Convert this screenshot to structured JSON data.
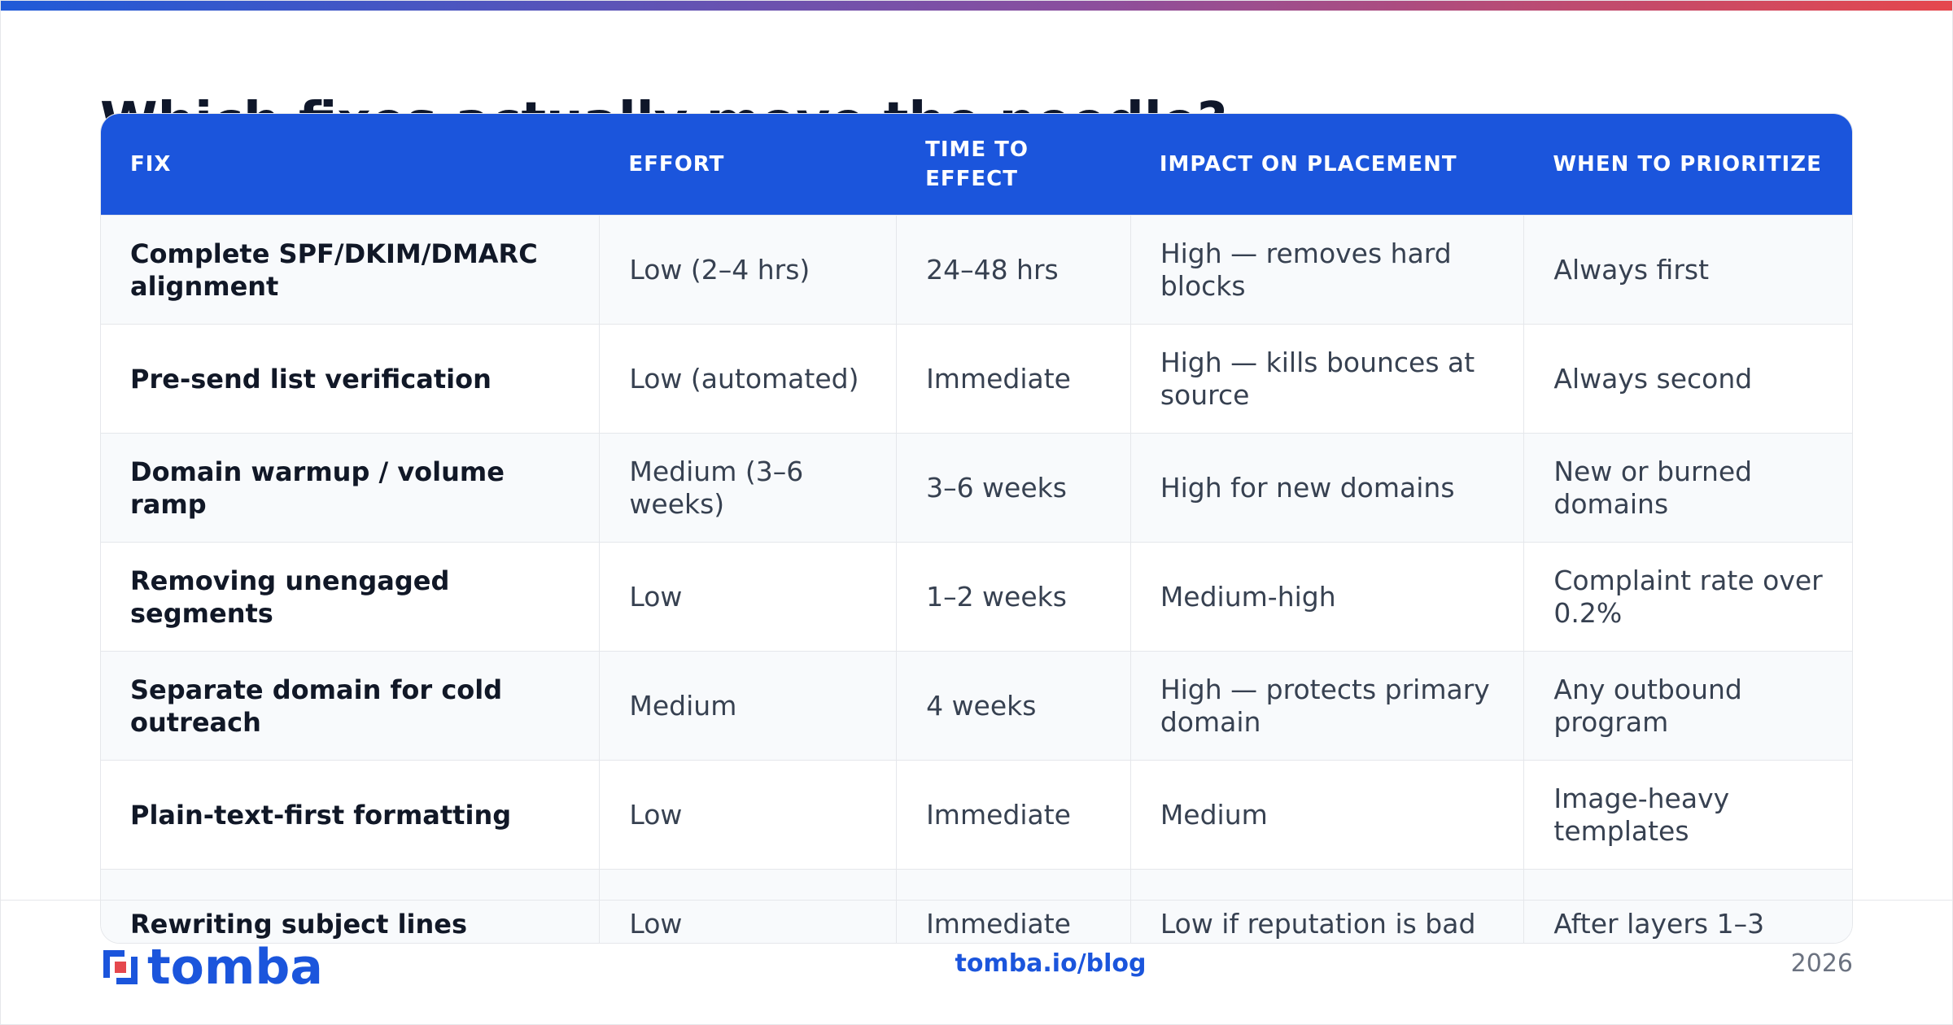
{
  "header": {
    "title": "Which fixes actually move the needle?"
  },
  "table": {
    "columns": [
      "FIX",
      "EFFORT",
      "TIME TO EFFECT",
      "IMPACT ON PLACEMENT",
      "WHEN TO PRIORITIZE"
    ],
    "rows": [
      [
        "Complete SPF/DKIM/DMARC alignment",
        "Low (2–4 hrs)",
        "24–48 hrs",
        "High — removes hard blocks",
        "Always first"
      ],
      [
        "Pre-send list verification",
        "Low (automated)",
        "Immediate",
        "High — kills bounces at source",
        "Always second"
      ],
      [
        "Domain warmup / volume ramp",
        "Medium (3–6 weeks)",
        "3–6 weeks",
        "High for new domains",
        "New or burned domains"
      ],
      [
        "Removing unengaged segments",
        "Low",
        "1–2 weeks",
        "Medium-high",
        "Complaint rate over 0.2%"
      ],
      [
        "Separate domain for cold outreach",
        "Medium",
        "4 weeks",
        "High — protects primary domain",
        "Any outbound program"
      ],
      [
        "Plain-text-first formatting",
        "Low",
        "Immediate",
        "Medium",
        "Image-heavy templates"
      ],
      [
        "Rewriting subject lines",
        "Low",
        "Immediate",
        "Low if reputation is bad",
        "After layers 1–3"
      ]
    ]
  },
  "footer": {
    "logo": "tomba",
    "link": "tomba.io/blog",
    "year": "2026"
  }
}
